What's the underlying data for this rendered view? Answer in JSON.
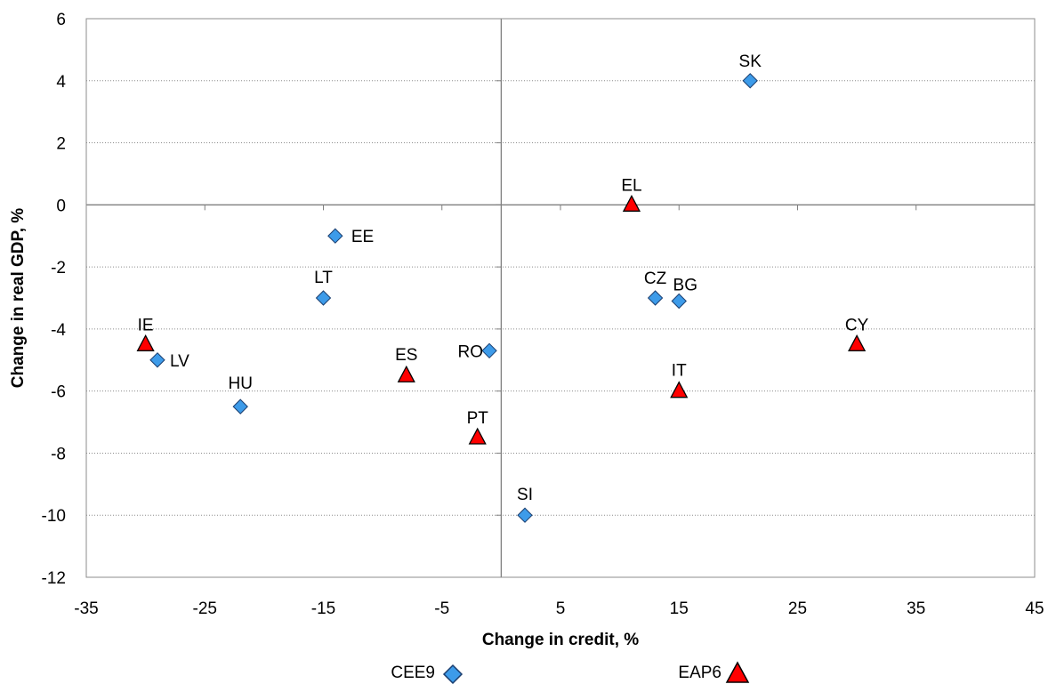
{
  "chart_data": {
    "type": "scatter",
    "title": "",
    "xlabel": "Change in credit, %",
    "ylabel": "Change in real GDP, %",
    "xlim": [
      -35,
      45
    ],
    "ylim": [
      -12,
      6
    ],
    "xticks": [
      -35,
      -25,
      -15,
      -5,
      5,
      15,
      25,
      35,
      45
    ],
    "yticks": [
      -12,
      -10,
      -8,
      -6,
      -4,
      -2,
      0,
      2,
      4,
      6
    ],
    "grid": "horizontal dotted",
    "legend_position": "bottom",
    "series": [
      {
        "name": "CEE9",
        "marker": "diamond",
        "color": "#3d9be9",
        "points": [
          {
            "label": "SK",
            "x": 21,
            "y": 4.0
          },
          {
            "label": "EE",
            "x": -14,
            "y": -1.0
          },
          {
            "label": "LT",
            "x": -15,
            "y": -3.0
          },
          {
            "label": "CZ",
            "x": 13,
            "y": -3.0
          },
          {
            "label": "BG",
            "x": 15,
            "y": -3.1
          },
          {
            "label": "LV",
            "x": -29,
            "y": -5.0
          },
          {
            "label": "RO",
            "x": -1,
            "y": -4.7
          },
          {
            "label": "HU",
            "x": -22,
            "y": -6.5
          },
          {
            "label": "SI",
            "x": 2,
            "y": -10.0
          }
        ]
      },
      {
        "name": "EAP6",
        "marker": "triangle",
        "color": "#ff0000",
        "points": [
          {
            "label": "EL",
            "x": 11,
            "y": 0.0
          },
          {
            "label": "IE",
            "x": -30,
            "y": -4.5
          },
          {
            "label": "ES",
            "x": -8,
            "y": -5.5
          },
          {
            "label": "PT",
            "x": -2,
            "y": -7.5
          },
          {
            "label": "IT",
            "x": 15,
            "y": -6.0
          },
          {
            "label": "CY",
            "x": 30,
            "y": -4.5
          }
        ]
      }
    ]
  }
}
